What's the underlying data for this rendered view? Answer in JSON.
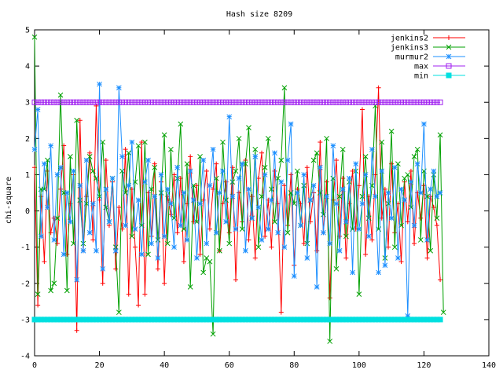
{
  "chart_data": {
    "type": "line",
    "title": "Hash size 8209",
    "xlabel": "",
    "ylabel": "chi-square",
    "xlim": [
      0,
      140
    ],
    "ylim": [
      -4,
      5
    ],
    "xticks": [
      0,
      20,
      40,
      60,
      80,
      100,
      120,
      140
    ],
    "yticks": [
      -4,
      -3,
      -2,
      -1,
      0,
      1,
      2,
      3,
      4,
      5
    ],
    "grid": false,
    "legend_position": "top-right",
    "series": [
      {
        "name": "jenkins2",
        "color": "#ff0000",
        "marker": "plus",
        "values": [
          1.2,
          -2.6,
          0.4,
          -1.4,
          1.1,
          -0.6,
          -0.2,
          -0.9,
          0.6,
          1.8,
          -1.2,
          0.2,
          1.0,
          -3.3,
          2.5,
          -1.1,
          0.4,
          1.6,
          -0.8,
          2.9,
          0.3,
          -2.0,
          1.4,
          -0.4,
          0.8,
          -1.6,
          0.1,
          -0.5,
          1.7,
          -2.3,
          0.6,
          -1.0,
          -2.6,
          1.9,
          -2.3,
          0.5,
          -0.7,
          1.3,
          -1.6,
          0.8,
          -2.0,
          0.4,
          -0.1,
          1.0,
          -0.6,
          0.9,
          -1.4,
          0.2,
          1.5,
          -0.3,
          0.7,
          -1.2,
          0.3,
          1.1,
          -0.5,
          0.6,
          1.3,
          -1.1,
          0.2,
          0.8,
          -0.6,
          1.2,
          -1.9,
          0.5,
          -0.3,
          1.4,
          -0.8,
          0.4,
          -1.3,
          0.9,
          1.6,
          -0.7,
          0.3,
          -1.0,
          1.1,
          0.2,
          -2.8,
          0.7,
          -0.4,
          1.0,
          -1.5,
          0.6,
          0.2,
          -0.9,
          1.2,
          -0.3,
          0.5,
          -1.1,
          1.9,
          -0.6,
          0.8,
          -2.4,
          0.3,
          1.4,
          -0.7,
          0.9,
          -1.3,
          0.2,
          1.1,
          -0.5,
          0.7,
          2.8,
          -1.2,
          0.4,
          -0.8,
          1.0,
          3.4,
          -0.2,
          0.6,
          -1.0,
          1.3,
          -0.6,
          0.2,
          -1.4,
          0.8,
          -0.3,
          1.1,
          -0.9,
          0.5,
          -0.2,
          0.7,
          -1.3,
          0.4,
          0.1,
          -0.4,
          -1.9
        ]
      },
      {
        "name": "jenkins3",
        "color": "#00a000",
        "marker": "x",
        "values": [
          4.8,
          -2.3,
          0.6,
          0.6,
          1.4,
          -2.2,
          -2.0,
          -0.2,
          3.2,
          0.5,
          -2.2,
          1.5,
          -0.9,
          2.5,
          0.3,
          -0.9,
          0.2,
          1.5,
          1.1,
          0.9,
          0.4,
          1.9,
          0.1,
          -0.3,
          0.9,
          -1.0,
          -2.8,
          1.1,
          0.5,
          1.6,
          -0.7,
          0.8,
          1.8,
          -0.4,
          1.9,
          -1.2,
          0.6,
          1.2,
          -0.8,
          0.5,
          2.1,
          -0.9,
          1.7,
          -0.2,
          0.9,
          2.4,
          -0.5,
          1.3,
          -2.1,
          0.7,
          -0.3,
          1.5,
          -1.7,
          -1.3,
          -1.4,
          -3.4,
          0.9,
          -1.1,
          1.9,
          0.3,
          -0.9,
          0.8,
          1.1,
          2.0,
          -0.5,
          1.3,
          2.3,
          -0.2,
          1.7,
          -1.0,
          0.4,
          1.2,
          2.0,
          0.6,
          -0.3,
          0.9,
          1.4,
          3.4,
          -0.6,
          0.5,
          0.2,
          1.1,
          -0.4,
          0.7,
          -0.9,
          0.3,
          1.4,
          1.6,
          0.5,
          -0.1,
          2.0,
          -3.6,
          0.9,
          -1.6,
          0.4,
          1.7,
          -0.7,
          0.8,
          -0.5,
          1.1,
          -2.3,
          0.4,
          1.5,
          -0.2,
          0.7,
          2.9,
          -0.5,
          1.9,
          -1.3,
          0.2,
          2.2,
          -1.0,
          1.3,
          -0.4,
          0.9,
          1.0,
          0.1,
          1.5,
          1.7,
          -0.8,
          1.1,
          0.4,
          -1.1,
          1.0,
          -0.2,
          2.1,
          -2.8
        ]
      },
      {
        "name": "murmur2",
        "color": "#1e90ff",
        "marker": "asterisk",
        "values": [
          1.7,
          2.8,
          -0.7,
          1.3,
          0.1,
          1.8,
          -0.8,
          1.0,
          1.2,
          -1.2,
          0.5,
          -0.3,
          1.1,
          -1.9,
          0.7,
          -1.1,
          1.4,
          -0.6,
          0.2,
          -1.1,
          3.5,
          -1.6,
          0.6,
          -0.3,
          0.9,
          -1.1,
          3.4,
          1.5,
          -0.4,
          0.7,
          1.9,
          -0.5,
          0.3,
          -1.2,
          0.8,
          1.4,
          -0.9,
          0.4,
          -1.3,
          1.0,
          -0.7,
          0.6,
          0.2,
          -1.0,
          1.2,
          -0.4,
          0.5,
          -0.8,
          1.1,
          0.3,
          -1.3,
          0.2,
          1.4,
          -0.9,
          0.7,
          1.7,
          -0.6,
          0.5,
          1.1,
          -0.3,
          2.6,
          0.4,
          -0.5,
          0.9,
          1.3,
          -1.1,
          0.6,
          -0.2,
          1.5,
          0.1,
          -0.8,
          1.0,
          -0.5,
          0.3,
          1.6,
          -0.6,
          0.8,
          -1.0,
          1.4,
          2.4,
          -1.8,
          0.5,
          -0.4,
          1.0,
          -1.3,
          0.3,
          0.7,
          -2.1,
          1.2,
          -0.6,
          0.4,
          -0.9,
          1.8,
          0.2,
          -1.1,
          0.6,
          -0.3,
          0.9,
          -1.7,
          1.3,
          -0.5,
          0.2,
          1.0,
          -0.7,
          1.7,
          0.4,
          -1.7,
          1.1,
          -1.5,
          0.5,
          -0.2,
          1.2,
          -1.3,
          0.6,
          0.3,
          -2.9,
          0.8,
          -0.4,
          1.3,
          0.5,
          2.4,
          -0.8,
          0.6,
          1.1,
          0.4,
          0.5
        ]
      },
      {
        "name": "max",
        "color": "#a020f0",
        "marker": "open-square",
        "values": [
          3.0,
          3.0,
          3.0,
          3.0,
          3.0,
          3.0,
          3.0,
          3.0,
          3.0,
          3.0,
          3.0,
          3.0,
          3.0,
          3.0,
          3.0,
          3.0,
          3.0,
          3.0,
          3.0,
          3.0,
          3.0,
          3.0,
          3.0,
          3.0,
          3.0,
          3.0,
          3.0,
          3.0,
          3.0,
          3.0,
          3.0,
          3.0,
          3.0,
          3.0,
          3.0,
          3.0,
          3.0,
          3.0,
          3.0,
          3.0,
          3.0,
          3.0,
          3.0,
          3.0,
          3.0,
          3.0,
          3.0,
          3.0,
          3.0,
          3.0,
          3.0,
          3.0,
          3.0,
          3.0,
          3.0,
          3.0,
          3.0,
          3.0,
          3.0,
          3.0,
          3.0,
          3.0,
          3.0,
          3.0,
          3.0,
          3.0,
          3.0,
          3.0,
          3.0,
          3.0,
          3.0,
          3.0,
          3.0,
          3.0,
          3.0,
          3.0,
          3.0,
          3.0,
          3.0,
          3.0,
          3.0,
          3.0,
          3.0,
          3.0,
          3.0,
          3.0,
          3.0,
          3.0,
          3.0,
          3.0,
          3.0,
          3.0,
          3.0,
          3.0,
          3.0,
          3.0,
          3.0,
          3.0,
          3.0,
          3.0,
          3.0,
          3.0,
          3.0,
          3.0,
          3.0,
          3.0,
          3.0,
          3.0,
          3.0,
          3.0,
          3.0,
          3.0,
          3.0,
          3.0,
          3.0,
          3.0,
          3.0,
          3.0,
          3.0,
          3.0,
          3.0,
          3.0,
          3.0,
          3.0,
          3.0,
          3.0
        ]
      },
      {
        "name": "min",
        "color": "#00e0e0",
        "marker": "filled-square",
        "values": [
          -3.0,
          -3.0,
          -3.0,
          -3.0,
          -3.0,
          -3.0,
          -3.0,
          -3.0,
          -3.0,
          -3.0,
          -3.0,
          -3.0,
          -3.0,
          -3.0,
          -3.0,
          -3.0,
          -3.0,
          -3.0,
          -3.0,
          -3.0,
          -3.0,
          -3.0,
          -3.0,
          -3.0,
          -3.0,
          -3.0,
          -3.0,
          -3.0,
          -3.0,
          -3.0,
          -3.0,
          -3.0,
          -3.0,
          -3.0,
          -3.0,
          -3.0,
          -3.0,
          -3.0,
          -3.0,
          -3.0,
          -3.0,
          -3.0,
          -3.0,
          -3.0,
          -3.0,
          -3.0,
          -3.0,
          -3.0,
          -3.0,
          -3.0,
          -3.0,
          -3.0,
          -3.0,
          -3.0,
          -3.0,
          -3.0,
          -3.0,
          -3.0,
          -3.0,
          -3.0,
          -3.0,
          -3.0,
          -3.0,
          -3.0,
          -3.0,
          -3.0,
          -3.0,
          -3.0,
          -3.0,
          -3.0,
          -3.0,
          -3.0,
          -3.0,
          -3.0,
          -3.0,
          -3.0,
          -3.0,
          -3.0,
          -3.0,
          -3.0,
          -3.0,
          -3.0,
          -3.0,
          -3.0,
          -3.0,
          -3.0,
          -3.0,
          -3.0,
          -3.0,
          -3.0,
          -3.0,
          -3.0,
          -3.0,
          -3.0,
          -3.0,
          -3.0,
          -3.0,
          -3.0,
          -3.0,
          -3.0,
          -3.0,
          -3.0,
          -3.0,
          -3.0,
          -3.0,
          -3.0,
          -3.0,
          -3.0,
          -3.0,
          -3.0,
          -3.0,
          -3.0,
          -3.0,
          -3.0,
          -3.0,
          -3.0,
          -3.0,
          -3.0,
          -3.0,
          -3.0,
          -3.0,
          -3.0,
          -3.0,
          -3.0,
          -3.0,
          -3.0
        ]
      }
    ]
  }
}
